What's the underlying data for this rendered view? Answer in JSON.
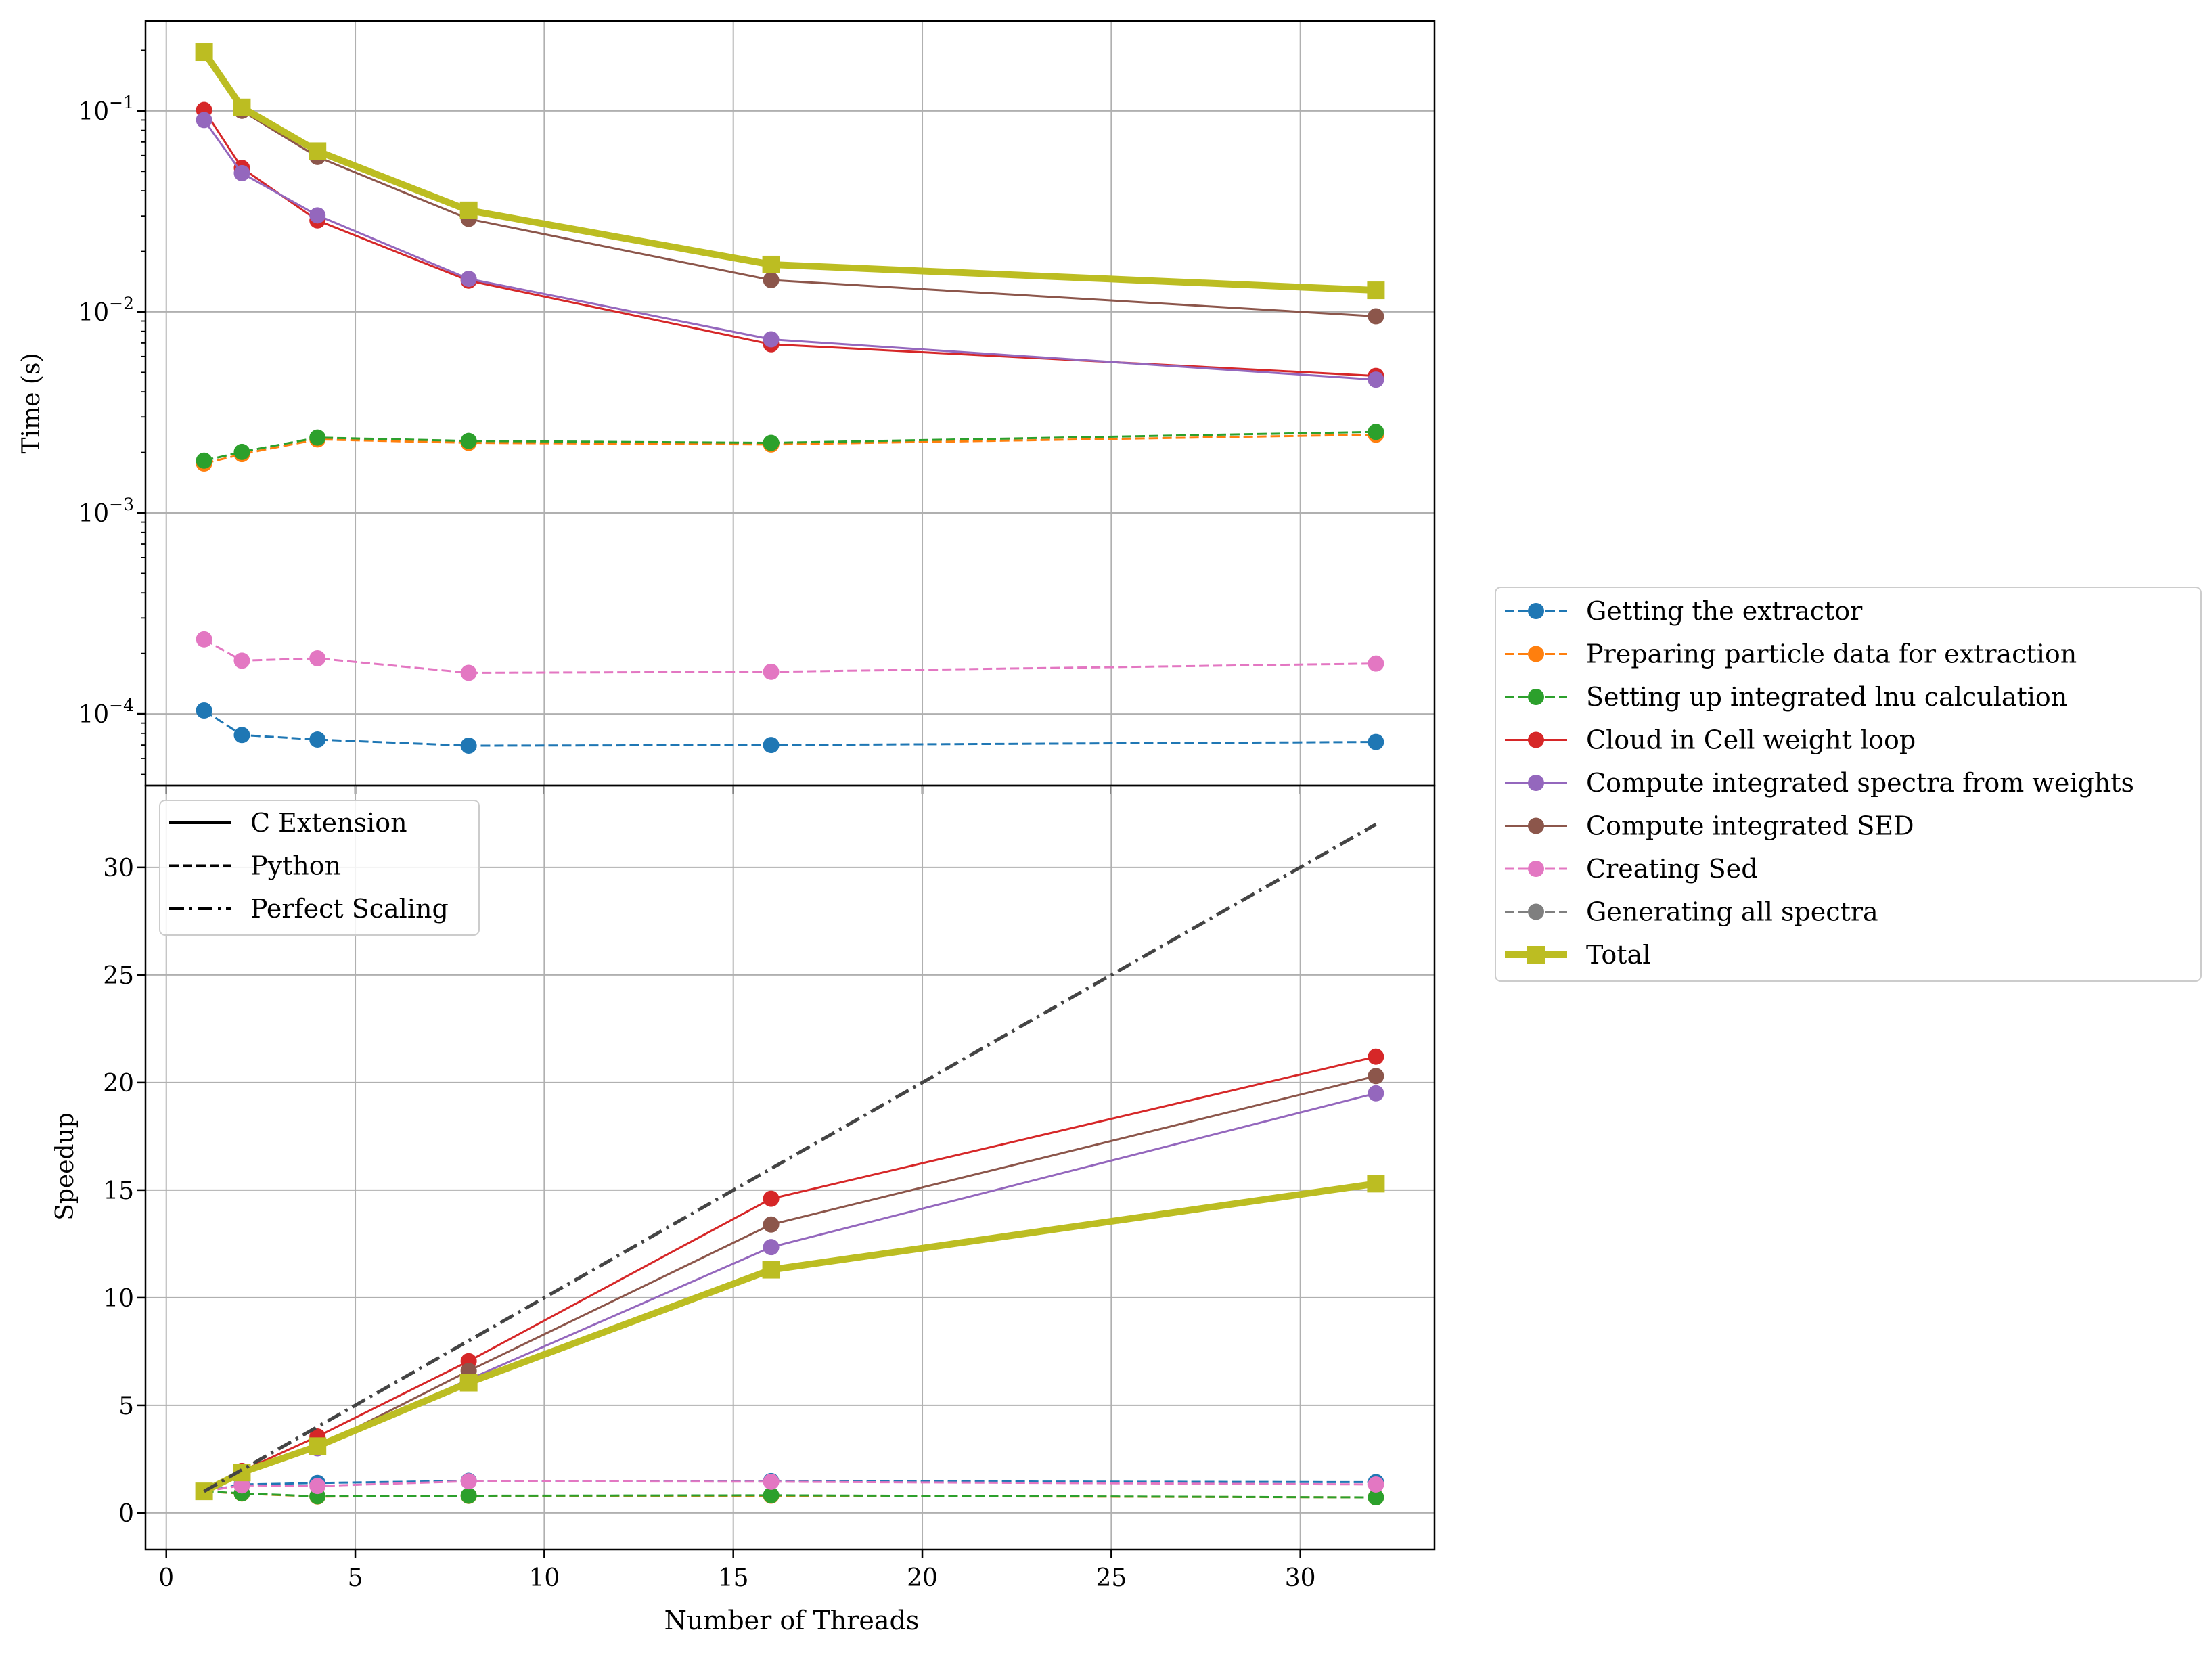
{
  "chart_data": [
    {
      "type": "line",
      "panel": "top",
      "ylabel": "Time (s)",
      "xlabel": "",
      "yscale": "log",
      "xlim": [
        -0.55,
        33.55
      ],
      "ylim": [
        4.4e-05,
        0.28
      ],
      "x_ticks": [
        0,
        5,
        10,
        15,
        20,
        25,
        30
      ],
      "y_tick_labels": [
        {
          "value": 0.1,
          "mant": "10",
          "exp": "−1"
        },
        {
          "value": 0.01,
          "mant": "10",
          "exp": "−2"
        },
        {
          "value": 0.001,
          "mant": "10",
          "exp": "−3"
        },
        {
          "value": 0.0001,
          "mant": "10",
          "exp": "−4"
        }
      ],
      "grid": true,
      "x": [
        1,
        2,
        4,
        8,
        16,
        32
      ],
      "series": [
        {
          "name": "Getting the extractor",
          "color": "#1f77b4",
          "style": "dashed",
          "marker": "circle",
          "values": [
            0.000104,
            7.85e-05,
            7.45e-05,
            6.95e-05,
            7e-05,
            7.25e-05
          ]
        },
        {
          "name": "Preparing particle data for extraction",
          "color": "#ff7f0e",
          "style": "dashed",
          "marker": "circle",
          "values": [
            0.00176,
            0.00196,
            0.00232,
            0.00223,
            0.00219,
            0.00245
          ]
        },
        {
          "name": "Setting up integrated lnu calculation",
          "color": "#2ca02c",
          "style": "dashed",
          "marker": "circle",
          "values": [
            0.00182,
            0.00201,
            0.00237,
            0.00228,
            0.00223,
            0.00253
          ]
        },
        {
          "name": "Cloud in Cell weight loop",
          "color": "#d62728",
          "style": "solid",
          "marker": "circle",
          "values": [
            0.101,
            0.052,
            0.0285,
            0.0143,
            0.0069,
            0.0048
          ]
        },
        {
          "name": "Compute integrated spectra from weights",
          "color": "#9467bd",
          "style": "solid",
          "marker": "circle",
          "values": [
            0.09,
            0.049,
            0.0302,
            0.0146,
            0.0073,
            0.0046
          ]
        },
        {
          "name": "Compute integrated SED",
          "color": "#8c564b",
          "style": "solid",
          "marker": "circle",
          "values": [
            null,
            0.1,
            0.059,
            0.029,
            0.0144,
            0.0095
          ]
        },
        {
          "name": "Creating Sed",
          "color": "#e377c2",
          "style": "dashed",
          "marker": "circle",
          "values": [
            0.000235,
            0.000184,
            0.000189,
            0.00016,
            0.000162,
            0.000178
          ]
        },
        {
          "name": "Total",
          "color": "#bcbd22",
          "style": "solid",
          "marker": "square",
          "linewidth": "thick",
          "values": [
            0.196,
            0.104,
            0.063,
            0.032,
            0.0172,
            0.0128
          ]
        }
      ]
    },
    {
      "type": "line",
      "panel": "bottom",
      "xlabel": "Number of Threads",
      "ylabel": "Speedup",
      "xlim": [
        -0.55,
        33.55
      ],
      "ylim": [
        -1.7,
        33.8
      ],
      "x_ticks": [
        0,
        5,
        10,
        15,
        20,
        25,
        30
      ],
      "y_ticks": [
        0,
        5,
        10,
        15,
        20,
        25,
        30
      ],
      "grid": true,
      "x": [
        1,
        2,
        4,
        8,
        16,
        32
      ],
      "series": [
        {
          "name": "Getting the extractor",
          "color": "#1f77b4",
          "style": "dashed",
          "marker": "circle",
          "values": [
            1.0,
            1.32,
            1.39,
            1.49,
            1.48,
            1.43
          ]
        },
        {
          "name": "Preparing particle data for extraction",
          "color": "#ff7f0e",
          "style": "dashed",
          "marker": "circle",
          "values": [
            1.0,
            0.9,
            0.76,
            0.79,
            0.8,
            0.72
          ]
        },
        {
          "name": "Setting up integrated lnu calculation",
          "color": "#2ca02c",
          "style": "dashed",
          "marker": "circle",
          "values": [
            1.0,
            0.91,
            0.77,
            0.8,
            0.82,
            0.72
          ]
        },
        {
          "name": "Cloud in Cell weight loop",
          "color": "#d62728",
          "style": "solid",
          "marker": "circle",
          "values": [
            1.0,
            1.95,
            3.55,
            7.05,
            14.6,
            21.2
          ]
        },
        {
          "name": "Compute integrated spectra from weights",
          "color": "#9467bd",
          "style": "solid",
          "marker": "circle",
          "values": [
            1.0,
            1.85,
            3.0,
            6.2,
            12.35,
            19.5
          ]
        },
        {
          "name": "Compute integrated SED",
          "color": "#8c564b",
          "style": "solid",
          "marker": "circle",
          "values": [
            1.0,
            1.9,
            3.05,
            6.6,
            13.4,
            20.3
          ]
        },
        {
          "name": "Creating Sed",
          "color": "#e377c2",
          "style": "dashed",
          "marker": "circle",
          "values": [
            1.0,
            1.28,
            1.25,
            1.47,
            1.45,
            1.32
          ]
        },
        {
          "name": "Total",
          "color": "#bcbd22",
          "style": "solid",
          "marker": "square",
          "linewidth": "thick",
          "values": [
            1.0,
            1.88,
            3.1,
            6.05,
            11.3,
            15.3
          ]
        },
        {
          "name": "Perfect Scaling",
          "color": "#444444",
          "style": "dashdot",
          "marker": "none",
          "values": [
            1,
            2,
            4,
            8,
            16,
            32
          ]
        }
      ]
    }
  ],
  "legend_main": {
    "placement": "right, outside axes",
    "entries": [
      {
        "label": "Getting the extractor",
        "color": "#1f77b4",
        "style": "dashed",
        "marker": "circle"
      },
      {
        "label": "Preparing particle data for extraction",
        "color": "#ff7f0e",
        "style": "dashed",
        "marker": "circle"
      },
      {
        "label": "Setting up integrated lnu calculation",
        "color": "#2ca02c",
        "style": "dashed",
        "marker": "circle"
      },
      {
        "label": "Cloud in Cell weight loop",
        "color": "#d62728",
        "style": "solid",
        "marker": "circle"
      },
      {
        "label": "Compute integrated spectra from weights",
        "color": "#9467bd",
        "style": "solid",
        "marker": "circle"
      },
      {
        "label": "Compute integrated SED",
        "color": "#8c564b",
        "style": "solid",
        "marker": "circle"
      },
      {
        "label": "Creating Sed",
        "color": "#e377c2",
        "style": "dashed",
        "marker": "circle"
      },
      {
        "label": "Generating all spectra",
        "color": "#7f7f7f",
        "style": "dashed",
        "marker": "circle"
      },
      {
        "label": "Total",
        "color": "#bcbd22",
        "style": "solid",
        "marker": "square"
      }
    ]
  },
  "legend_style": {
    "placement": "upper-left of bottom panel",
    "entries": [
      {
        "label": "C Extension",
        "style": "solid"
      },
      {
        "label": "Python",
        "style": "dashed"
      },
      {
        "label": "Perfect Scaling",
        "style": "dashdot"
      }
    ]
  }
}
